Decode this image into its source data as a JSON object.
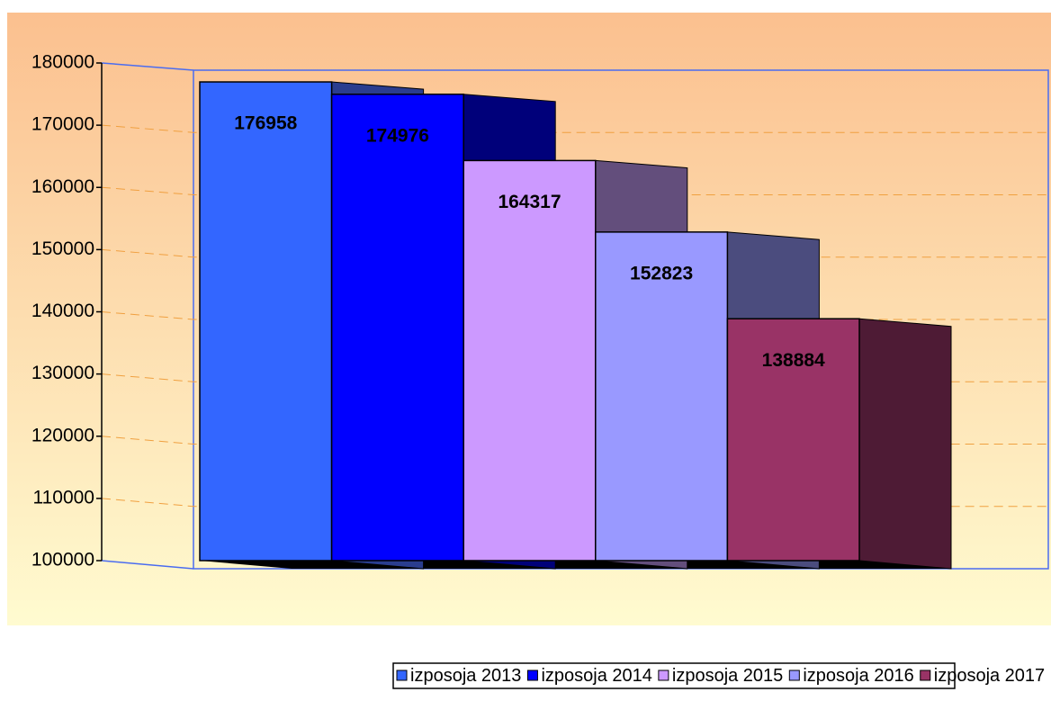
{
  "chart_data": {
    "type": "bar3d",
    "series": [
      {
        "name": "izposoja 2013",
        "color": "#3366ff",
        "side_color": "#2a3d8f",
        "values": [
          176958
        ]
      },
      {
        "name": "izposoja 2014",
        "color": "#0000ff",
        "side_color": "#00007a",
        "values": [
          174976
        ]
      },
      {
        "name": "izposoja 2015",
        "color": "#cc99ff",
        "side_color": "#634e7c",
        "values": [
          164317
        ]
      },
      {
        "name": "izposoja 2016",
        "color": "#9999ff",
        "side_color": "#4b4c7e",
        "values": [
          152823
        ]
      },
      {
        "name": "izposoja 2017",
        "color": "#993366",
        "side_color": "#4e1b35",
        "values": [
          138884
        ]
      }
    ],
    "ylim": [
      100000,
      180000
    ],
    "yticks": [
      100000,
      110000,
      120000,
      130000,
      140000,
      150000,
      160000,
      170000,
      180000
    ],
    "grid": true
  }
}
